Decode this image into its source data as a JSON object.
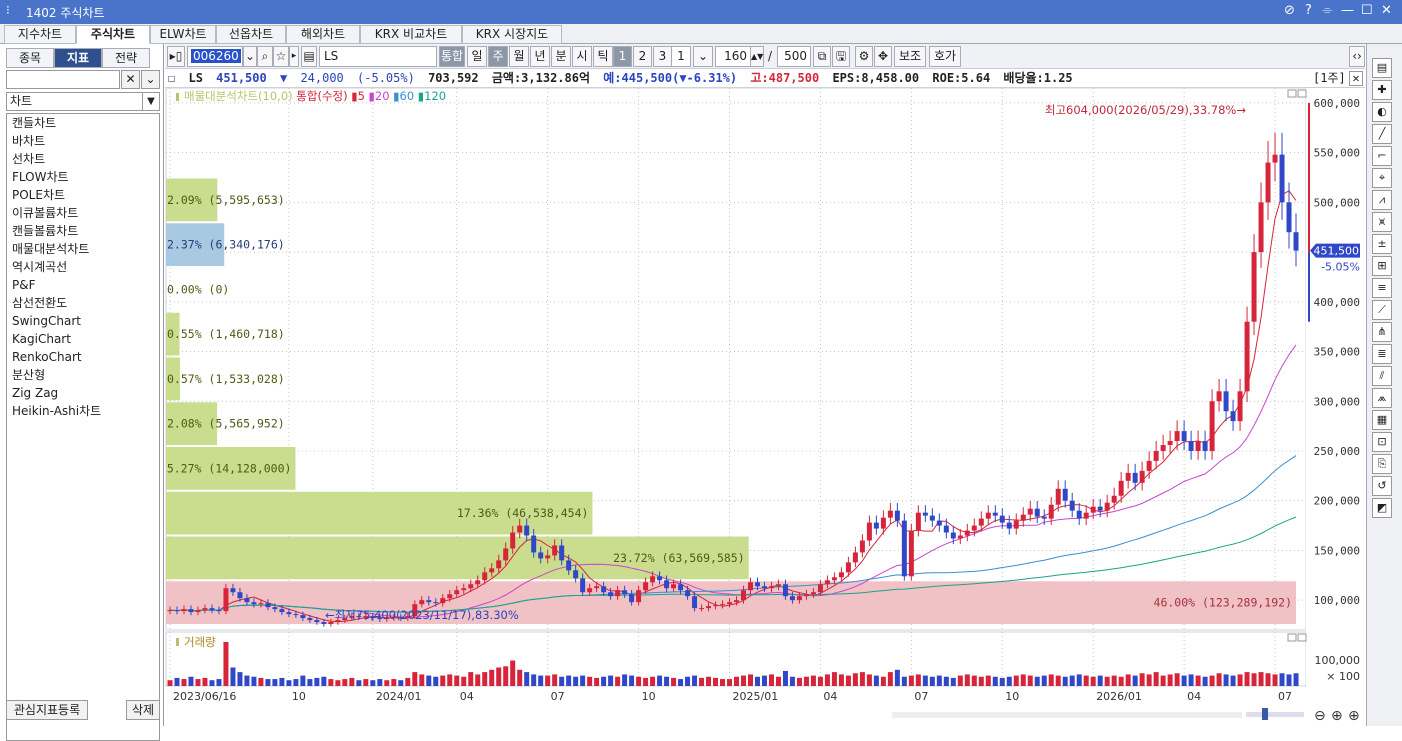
{
  "window": {
    "title": "1402 주식차트",
    "controls": [
      "⊘",
      "?",
      "⌯",
      "—",
      "☐",
      "✕"
    ]
  },
  "tabs": [
    "지수차트",
    "주식차트",
    "ELW차트",
    "선옵차트",
    "해외차트",
    "KRX 비교차트",
    "KRX 시장지도"
  ],
  "active_tab": "주식차트",
  "left": {
    "tabs": [
      "종목",
      "지표",
      "전략"
    ],
    "active": "지표",
    "select": "차트",
    "items": [
      "캔들차트",
      "바차트",
      "선차트",
      "FLOW차트",
      "POLE차트",
      "이큐볼륨차트",
      "캔들볼륨차트",
      "매물대분석차트",
      "역시계곡선",
      "P&F",
      "삼선전환도",
      "SwingChart",
      "KagiChart",
      "RenkoChart",
      "분산형",
      "Zig Zag",
      "Heikin-Ashi차트"
    ],
    "register_button": "관심지표등록",
    "delete_button": "삭제"
  },
  "toolbar": {
    "code": "006260",
    "name": "LS",
    "combined": "통합",
    "periods": [
      "일",
      "주",
      "월",
      "년",
      "분",
      "시",
      "틱"
    ],
    "selected_period": "주",
    "nums": [
      "1",
      "2",
      "3"
    ],
    "interval": "1",
    "count": "160",
    "total": "500",
    "aux": "보조",
    "quote": "호가"
  },
  "info": {
    "name": "LS",
    "price": "451,500",
    "arrow": "▼",
    "change": "24,000",
    "pct": "(-5.05%)",
    "volume": "703,592",
    "amount": "금액:3,132.86억",
    "expected": "예:445,500(▼-6.31%)",
    "high": "고:487,500",
    "eps": "EPS:8,458.00",
    "roe": "ROE:5.64",
    "div": "배당율:1.25",
    "unit": "[1주]"
  },
  "legend": {
    "title": "매물대분석차트(10,0)",
    "combo": "통합(수정)",
    "ma": [
      "5",
      "20",
      "60",
      "120"
    ]
  },
  "colors": {
    "up": "#d6253a",
    "down": "#3048c8",
    "ma5": "#d6253a",
    "ma20": "#cc44cc",
    "ma60": "#3a8fd0",
    "ma120": "#1aa48a",
    "vp_green": "#cadc8e",
    "vp_blue": "#a7c9e2",
    "vp_pink": "#f0c2c6"
  },
  "annotations": {
    "high": "최고604,000(2026/05/29),33.78%",
    "low": "최저75,400(2023/11/17),83.30%",
    "current": "451,500",
    "current_pct": "-5.05%"
  },
  "volume": {
    "label": "거래량",
    "ticks": [
      "100,000",
      "× 100"
    ]
  },
  "chart_data": {
    "type": "candlestick",
    "y_ticks": [
      100000,
      150000,
      200000,
      250000,
      300000,
      350000,
      400000,
      450000,
      500000,
      550000,
      600000
    ],
    "ylim": [
      70000,
      615000
    ],
    "x_labels": [
      {
        "label": "2023/06/16",
        "idx": 0
      },
      {
        "label": "10",
        "idx": 17
      },
      {
        "label": "2024/01",
        "idx": 29
      },
      {
        "label": "04",
        "idx": 41
      },
      {
        "label": "07",
        "idx": 54
      },
      {
        "label": "10",
        "idx": 67
      },
      {
        "label": "2025/01",
        "idx": 80
      },
      {
        "label": "04",
        "idx": 93
      },
      {
        "label": "07",
        "idx": 106
      },
      {
        "label": "10",
        "idx": 119
      },
      {
        "label": "2026/01",
        "idx": 132
      },
      {
        "label": "04",
        "idx": 145
      },
      {
        "label": "07",
        "idx": 158
      }
    ],
    "volume_profile": [
      {
        "low": 75000,
        "high": 120000,
        "pct": "46.00%",
        "vol": "123,289,192",
        "color": "pink"
      },
      {
        "low": 120000,
        "high": 165000,
        "pct": "23.72%",
        "vol": "63,569,585",
        "color": "green"
      },
      {
        "low": 165000,
        "high": 210000,
        "pct": "17.36%",
        "vol": "46,538,454",
        "color": "green"
      },
      {
        "low": 210000,
        "high": 255000,
        "pct": "5.27%",
        "vol": "14,128,000",
        "color": "green"
      },
      {
        "low": 255000,
        "high": 300000,
        "pct": "2.08%",
        "vol": "5,565,952",
        "color": "green"
      },
      {
        "low": 300000,
        "high": 345000,
        "pct": "0.57%",
        "vol": "1,533,028",
        "color": "green"
      },
      {
        "low": 345000,
        "high": 390000,
        "pct": "0.55%",
        "vol": "1,460,718",
        "color": "green"
      },
      {
        "low": 390000,
        "high": 435000,
        "pct": "0.00%",
        "vol": "0",
        "color": "green"
      },
      {
        "low": 435000,
        "high": 480000,
        "pct": "2.37%",
        "vol": "6,340,176",
        "color": "blue"
      },
      {
        "low": 480000,
        "high": 525000,
        "pct": "2.09%",
        "vol": "5,595,653",
        "color": "green"
      }
    ],
    "close": [
      90000,
      89000,
      91000,
      88000,
      90000,
      92000,
      90000,
      89000,
      112000,
      108000,
      102000,
      98000,
      96000,
      97000,
      93000,
      91000,
      88000,
      86000,
      85000,
      82000,
      80000,
      78000,
      76000,
      78000,
      80000,
      82000,
      84000,
      83000,
      84000,
      82000,
      81000,
      82000,
      83000,
      82000,
      84000,
      96000,
      100000,
      98000,
      97000,
      102000,
      106000,
      110000,
      112000,
      116000,
      120000,
      128000,
      132000,
      140000,
      152000,
      168000,
      175000,
      165000,
      148000,
      142000,
      145000,
      155000,
      140000,
      130000,
      122000,
      108000,
      112000,
      114000,
      108000,
      104000,
      110000,
      106000,
      98000,
      110000,
      118000,
      124000,
      120000,
      112000,
      116000,
      110000,
      104000,
      92000,
      92000,
      94000,
      95000,
      96000,
      98000,
      100000,
      110000,
      118000,
      114000,
      112000,
      114000,
      116000,
      104000,
      100000,
      104000,
      106000,
      108000,
      116000,
      120000,
      123000,
      128000,
      138000,
      148000,
      160000,
      178000,
      172000,
      183000,
      190000,
      180000,
      124000,
      170000,
      188000,
      185000,
      180000,
      175000,
      168000,
      162000,
      165000,
      170000,
      175000,
      182000,
      188000,
      185000,
      178000,
      172000,
      180000,
      186000,
      192000,
      184000,
      182000,
      196000,
      212000,
      200000,
      190000,
      182000,
      188000,
      194000,
      190000,
      198000,
      205000,
      220000,
      228000,
      218000,
      230000,
      240000,
      250000,
      256000,
      260000,
      270000,
      260000,
      250000,
      260000,
      250000,
      300000,
      310000,
      290000,
      280000,
      310000,
      380000,
      450000,
      500000,
      540000,
      548000,
      500000,
      470000,
      451500
    ],
    "volume": [
      5,
      7,
      6,
      8,
      6,
      7,
      5,
      6,
      38,
      16,
      12,
      9,
      8,
      7,
      6,
      6,
      7,
      5,
      6,
      9,
      6,
      7,
      8,
      6,
      5,
      6,
      7,
      5,
      6,
      5,
      6,
      5,
      6,
      5,
      7,
      12,
      10,
      9,
      8,
      9,
      10,
      9,
      8,
      12,
      10,
      12,
      14,
      16,
      17,
      22,
      14,
      12,
      10,
      9,
      9,
      10,
      8,
      9,
      8,
      9,
      8,
      7,
      8,
      9,
      8,
      10,
      9,
      8,
      7,
      8,
      9,
      8,
      7,
      6,
      8,
      9,
      7,
      8,
      7,
      6,
      6,
      8,
      9,
      10,
      8,
      9,
      10,
      8,
      13,
      8,
      7,
      8,
      9,
      8,
      10,
      12,
      10,
      9,
      11,
      12,
      10,
      9,
      8,
      12,
      14,
      8,
      9,
      10,
      9,
      8,
      9,
      8,
      7,
      9,
      10,
      9,
      8,
      9,
      8,
      7,
      8,
      9,
      10,
      9,
      8,
      9,
      10,
      9,
      8,
      9,
      10,
      9,
      8,
      9,
      8,
      9,
      8,
      10,
      9,
      11,
      10,
      12,
      9,
      10,
      11,
      9,
      10,
      9,
      8,
      9,
      11,
      10,
      9,
      10,
      12,
      11,
      12,
      11,
      10,
      11,
      10,
      11
    ],
    "series": [
      {
        "name": "5"
      },
      {
        "name": "20"
      },
      {
        "name": "60"
      },
      {
        "name": "120"
      }
    ]
  }
}
